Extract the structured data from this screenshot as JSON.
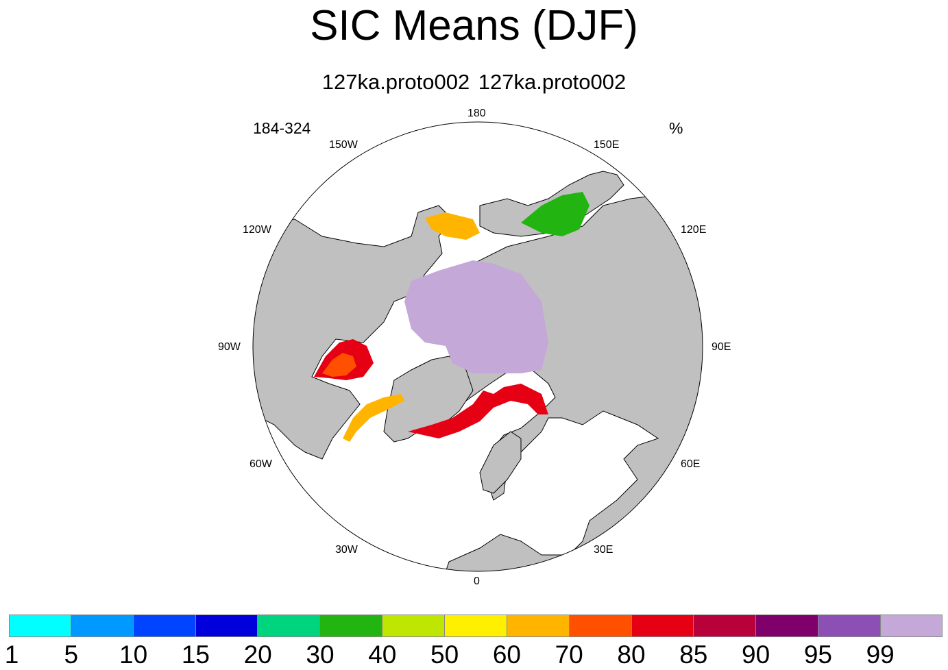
{
  "title": "SIC Means (DJF)",
  "subtitle": "127ka.proto002  127ka.proto002",
  "left_label": "184-324",
  "units": "%",
  "longitude_labels": {
    "top": "180",
    "top_left": "150W",
    "top_right": "150E",
    "upper_left": "120W",
    "upper_right": "120E",
    "left": "90W",
    "right": "90E",
    "lower_left": "60W",
    "lower_right": "60E",
    "bottom_left": "30W",
    "bottom_right": "30E",
    "bottom": "0"
  },
  "colors": {
    "land": "#c0c0c0",
    "ocean": "#ffffff",
    "outline": "#000000"
  },
  "legend": {
    "labels": [
      "1",
      "5",
      "10",
      "15",
      "20",
      "30",
      "40",
      "50",
      "60",
      "70",
      "80",
      "85",
      "90",
      "95",
      "99"
    ],
    "colors": [
      "#00ffff",
      "#0099ff",
      "#0044ff",
      "#0000dd",
      "#00d47f",
      "#22b511",
      "#bfe600",
      "#fff000",
      "#ffb400",
      "#ff5000",
      "#e60014",
      "#b8003a",
      "#7f006a",
      "#8c50b4",
      "#c4a8d8"
    ]
  }
}
